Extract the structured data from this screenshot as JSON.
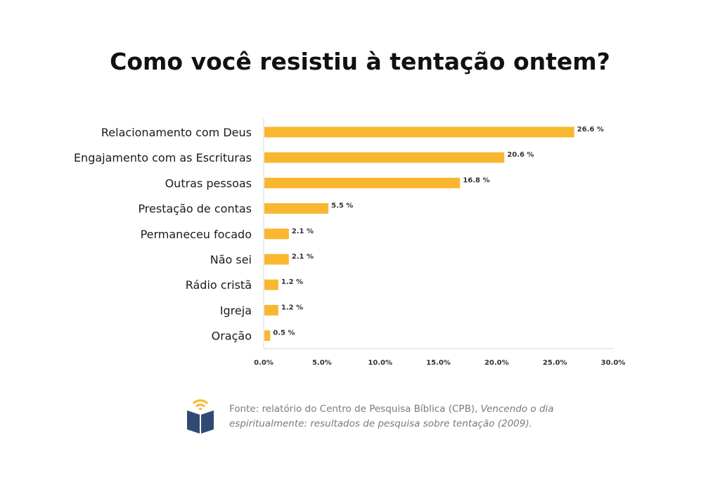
{
  "title": "Como você resistiu à tentação ontem?",
  "chart_data": {
    "type": "bar",
    "orientation": "horizontal",
    "categories": [
      "Relacionamento com Deus",
      "Engajamento com as Escrituras",
      "Outras pessoas",
      "Prestação de contas",
      "Permaneceu focado",
      "Não sei",
      "Rádio cristã",
      "Igreja",
      "Oração"
    ],
    "values": [
      26.6,
      20.6,
      16.8,
      5.5,
      2.1,
      2.1,
      1.2,
      1.2,
      0.5
    ],
    "value_labels": [
      "26.6 %",
      "20.6 %",
      "16.8 %",
      "5.5 %",
      "2.1 %",
      "2.1 %",
      "1.2 %",
      "1.2 %",
      "0.5 %"
    ],
    "xlim": [
      0,
      30
    ],
    "x_ticks": [
      0,
      5,
      10,
      15,
      20,
      25,
      30
    ],
    "x_tick_labels": [
      "0.0%",
      "5.0%",
      "10.0%",
      "15.0%",
      "20.0%",
      "25.0%",
      "30.0%"
    ],
    "bar_color": "#F9B730",
    "grid": false
  },
  "source": {
    "plain": "Fonte: relatório do Centro de Pesquisa Bíblica (CPB), ",
    "italic": "Vencendo o dia espiritualmente: resultados de pesquisa sobre tentação (2009)."
  },
  "logo": {
    "icon": "open-book-wifi-icon",
    "color_book": "#2F4B73",
    "color_waves": "#F9B730"
  }
}
